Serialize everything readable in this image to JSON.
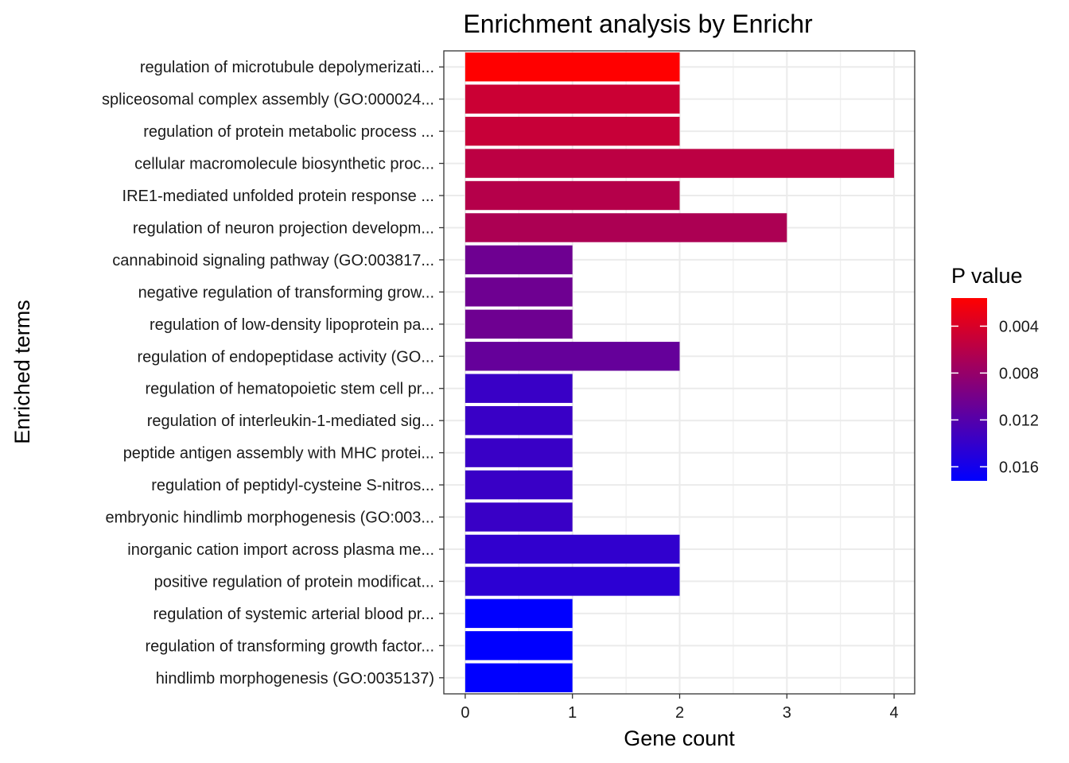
{
  "chart_data": {
    "type": "bar",
    "orientation": "horizontal",
    "title": "Enrichment analysis by Enrichr",
    "xlabel": "Gene count",
    "ylabel": "Enriched terms",
    "xlim": [
      0,
      4.2
    ],
    "xticks": [
      0,
      1,
      2,
      3,
      4
    ],
    "grid": true,
    "legend": {
      "title": "P value",
      "placement": "right",
      "type": "gradient",
      "low_color": "#ff0000",
      "high_color": "#0000ff",
      "range": [
        0.0016,
        0.0172
      ],
      "ticks": [
        0.004,
        0.008,
        0.012,
        0.016
      ],
      "tick_labels": [
        "0.004",
        "0.008",
        "0.012",
        "0.016"
      ]
    },
    "categories": [
      "regulation of microtubule depolymerizati...",
      "spliceosomal complex assembly (GO:000024...",
      "regulation of protein metabolic process ...",
      "cellular macromolecule biosynthetic proc...",
      "IRE1-mediated unfolded protein response ...",
      "regulation of neuron projection developm...",
      "cannabinoid signaling pathway (GO:003817...",
      "negative regulation of transforming grow...",
      "regulation of low-density lipoprotein pa...",
      "regulation of endopeptidase activity (GO...",
      "regulation of hematopoietic stem cell pr...",
      "regulation of interleukin-1-mediated sig...",
      "peptide antigen assembly with MHC protei...",
      "regulation of peptidyl-cysteine S-nitros...",
      "embryonic hindlimb morphogenesis (GO:003...",
      "inorganic cation import across plasma me...",
      "positive regulation of protein modificat...",
      "regulation of systemic arterial blood pr...",
      "regulation of transforming growth factor...",
      "hindlimb morphogenesis (GO:0035137)"
    ],
    "values": [
      2,
      2,
      2,
      4,
      2,
      3,
      1,
      1,
      1,
      2,
      1,
      1,
      1,
      1,
      1,
      2,
      2,
      1,
      1,
      1
    ],
    "p_values": [
      0.0016,
      0.0048,
      0.005,
      0.0057,
      0.0061,
      0.0067,
      0.0105,
      0.0105,
      0.0105,
      0.011,
      0.0137,
      0.0137,
      0.0137,
      0.0137,
      0.0137,
      0.0142,
      0.0145,
      0.0172,
      0.0172,
      0.0172
    ]
  }
}
